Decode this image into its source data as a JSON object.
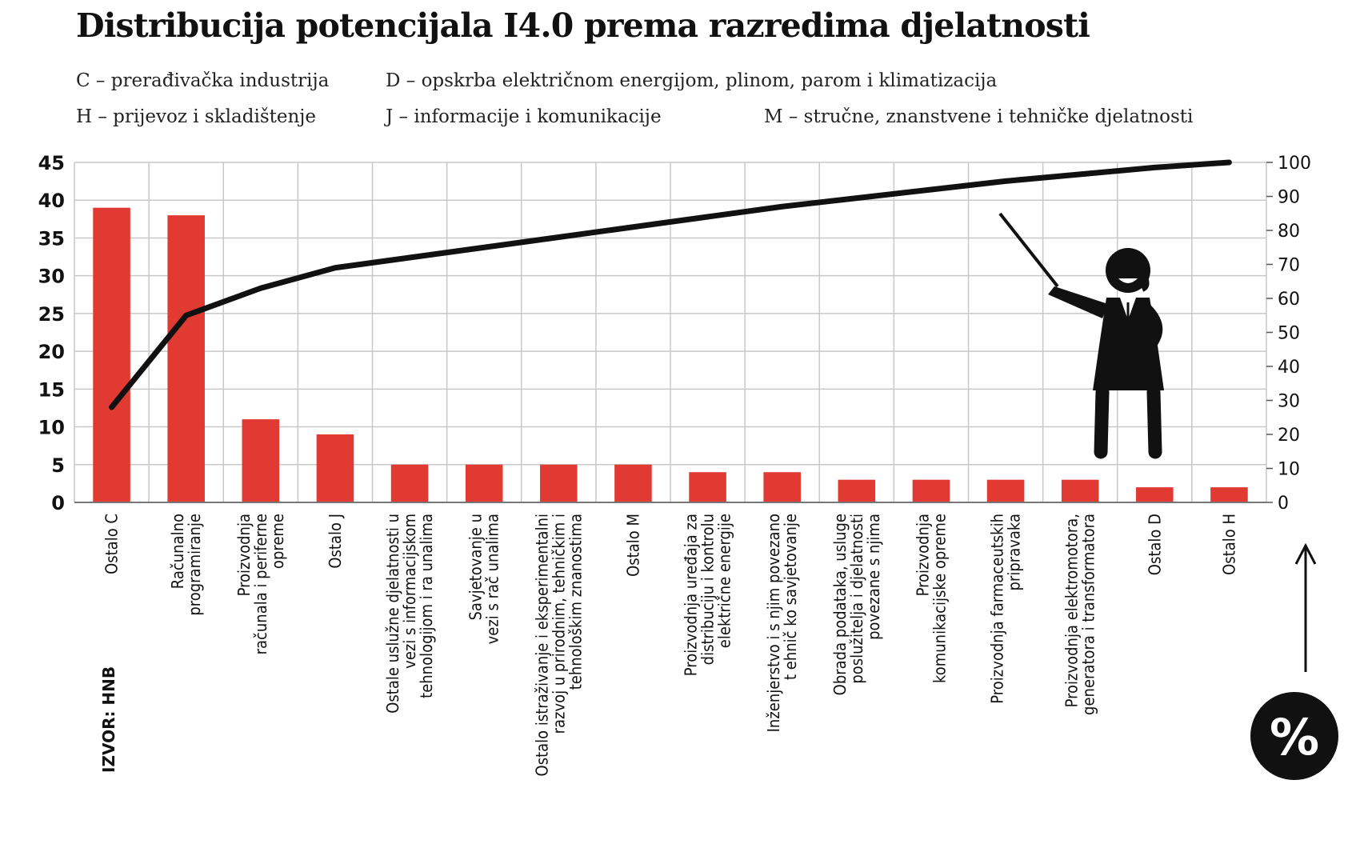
{
  "title": "Distribucija potencijala I4.0 prema razredima djelatnosti",
  "legend": [
    "C – prerađivačka industrija",
    "D – opskrba električnom energijom, plinom, parom i klimatizacija",
    "H – prijevoz i skladištenje",
    "J – informacije i komunikacije",
    "M – stručne, znanstvene i tehničke djelatnosti"
  ],
  "source": "IZVOR: HNB",
  "percent_symbol": "%",
  "colors": {
    "bar": "#e03a32",
    "line": "#111111",
    "grid": "#c8c8c8"
  },
  "icons": {
    "presenter": "woman-presenter-icon",
    "arrow": "up-arrow-icon"
  },
  "chart_data": {
    "type": "bar",
    "title": "Distribucija potencijala I4.0 prema razredima djelatnosti",
    "categories": [
      [
        "Ostalo C"
      ],
      [
        "Računalno",
        "programiranje"
      ],
      [
        "Proizvodnja",
        "računala i periferne",
        "opreme"
      ],
      [
        "Ostalo J"
      ],
      [
        "Ostale uslužne djelatnosti u",
        "vezi s informacijskom",
        "tehnologijom i ra unalima"
      ],
      [
        "Savjetovanje u",
        "vezi s rač unalima"
      ],
      [
        "Ostalo istraživanje i eksperimentalni",
        "razvoj u prirodnim, tehničkim i",
        "tehnološkim znanostima"
      ],
      [
        "Ostalo M"
      ],
      [
        "Proizvodnja uređaja za",
        "distribuciju i kontrolu",
        "električne energije"
      ],
      [
        "Inženjerstvo i s njim povezano",
        "t ehnič ko savjetovanje"
      ],
      [
        "Obrada podataka, usluge",
        "poslužitelja i djelatnosti",
        "povezane s njima"
      ],
      [
        "Proizvodnja",
        "komunikacijske opreme"
      ],
      [
        "Proizvodnja farmaceutskih",
        "pripravaka"
      ],
      [
        "Proizvodnja elektromotora,",
        "generatora i transformatora"
      ],
      [
        "Ostalo D"
      ],
      [
        "Ostalo H"
      ]
    ],
    "series": [
      {
        "type": "bar",
        "axis": "left",
        "values": [
          39,
          38,
          11,
          9,
          5,
          5,
          5,
          5,
          4,
          4,
          3,
          3,
          3,
          3,
          2,
          2
        ]
      },
      {
        "type": "line",
        "axis": "right",
        "values": [
          28,
          55,
          63,
          69,
          72,
          75,
          78,
          81,
          84,
          87,
          89.5,
          92,
          94.5,
          96.5,
          98.5,
          100
        ]
      }
    ],
    "y_left": {
      "lim": [
        0,
        45
      ],
      "ticks": [
        0,
        5,
        10,
        15,
        20,
        25,
        30,
        35,
        40,
        45
      ]
    },
    "y_right": {
      "lim": [
        0,
        100
      ],
      "ticks": [
        0,
        10,
        20,
        30,
        40,
        50,
        60,
        70,
        80,
        90,
        100
      ]
    },
    "grid": true
  }
}
